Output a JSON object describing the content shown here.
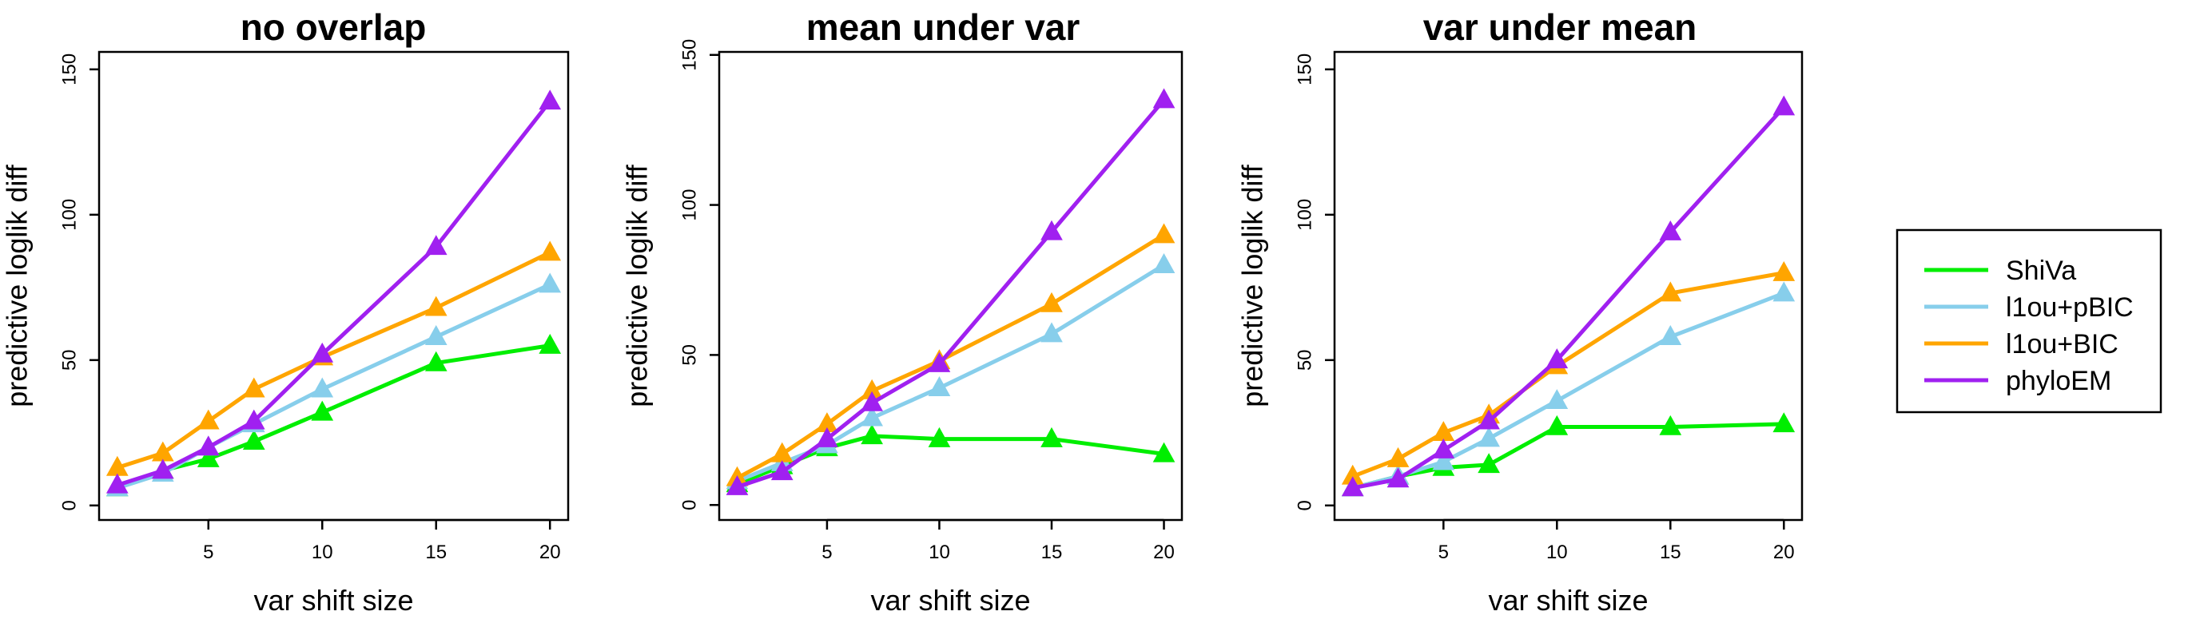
{
  "legend": [
    {
      "name": "ShiVa",
      "color": "#00EE00"
    },
    {
      "name": "l1ou+pBIC",
      "color": "#87CEEB"
    },
    {
      "name": "l1ou+BIC",
      "color": "#FFA500"
    },
    {
      "name": "phyloEM",
      "color": "#A020F0"
    }
  ],
  "chart_data": [
    {
      "type": "line",
      "title": "no overlap",
      "xlabel": "var shift size",
      "ylabel": "predictive loglik diff",
      "x": [
        1,
        3,
        5,
        7,
        10,
        15,
        20
      ],
      "xticks": [
        5,
        10,
        15,
        20
      ],
      "yticks": [
        0,
        50,
        100,
        150
      ],
      "xlim": [
        0.2,
        20.8
      ],
      "ylim": [
        -5,
        156
      ],
      "series": [
        {
          "name": "ShiVa",
          "color": "#00EE00",
          "values": [
            6,
            12,
            16,
            22,
            32,
            49,
            55
          ]
        },
        {
          "name": "l1ou+pBIC",
          "color": "#87CEEB",
          "values": [
            6,
            11,
            20,
            28,
            40,
            58,
            76
          ]
        },
        {
          "name": "l1ou+BIC",
          "color": "#FFA500",
          "values": [
            13,
            18,
            29,
            40,
            51,
            68,
            87
          ]
        },
        {
          "name": "phyloEM",
          "color": "#A020F0",
          "values": [
            7,
            12,
            20,
            29,
            52,
            89,
            139
          ]
        }
      ]
    },
    {
      "type": "line",
      "title": "mean under var",
      "xlabel": "var shift size",
      "ylabel": "predictive loglik diff",
      "x": [
        1,
        3,
        5,
        7,
        10,
        15,
        20
      ],
      "xticks": [
        5,
        10,
        15,
        20
      ],
      "yticks": [
        0,
        50,
        100,
        150
      ],
      "xlim": [
        0.2,
        20.8
      ],
      "ylim": [
        -5,
        151
      ],
      "series": [
        {
          "name": "ShiVa",
          "color": "#00EE00",
          "values": [
            7,
            13,
            19,
            23,
            22,
            22,
            17
          ]
        },
        {
          "name": "l1ou+pBIC",
          "color": "#87CEEB",
          "values": [
            8,
            14,
            20,
            29,
            39,
            57,
            80
          ]
        },
        {
          "name": "l1ou+BIC",
          "color": "#FFA500",
          "values": [
            9,
            17,
            27,
            38,
            48,
            67,
            90
          ]
        },
        {
          "name": "phyloEM",
          "color": "#A020F0",
          "values": [
            6,
            11,
            22,
            34,
            47,
            91,
            135
          ]
        }
      ]
    },
    {
      "type": "line",
      "title": "var under mean",
      "xlabel": "var shift size",
      "ylabel": "predictive loglik diff",
      "x": [
        1,
        3,
        5,
        7,
        10,
        15,
        20
      ],
      "xticks": [
        5,
        10,
        15,
        20
      ],
      "yticks": [
        0,
        50,
        100,
        150
      ],
      "xlim": [
        0.2,
        20.8
      ],
      "ylim": [
        -5,
        156
      ],
      "series": [
        {
          "name": "ShiVa",
          "color": "#00EE00",
          "values": [
            6,
            10,
            13,
            14,
            27,
            27,
            28
          ]
        },
        {
          "name": "l1ou+pBIC",
          "color": "#87CEEB",
          "values": [
            6,
            10,
            15,
            23,
            36,
            58,
            73
          ]
        },
        {
          "name": "l1ou+BIC",
          "color": "#FFA500",
          "values": [
            10,
            16,
            25,
            31,
            48,
            73,
            80
          ]
        },
        {
          "name": "phyloEM",
          "color": "#A020F0",
          "values": [
            6,
            9,
            19,
            29,
            50,
            94,
            137
          ]
        }
      ]
    }
  ]
}
